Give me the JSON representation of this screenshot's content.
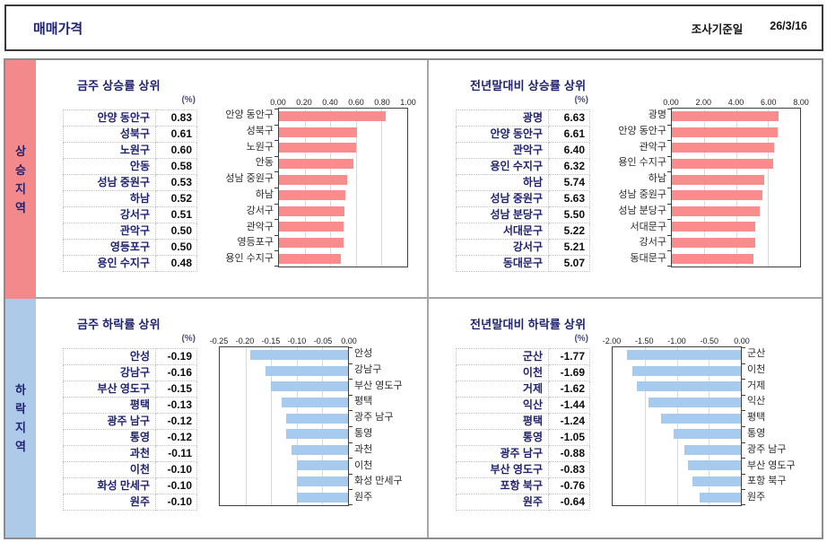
{
  "header": {
    "title": "매매가격",
    "survey_label": "조사기준일",
    "survey_date": "26/3/16"
  },
  "sidebar": {
    "rise_label": "상승지역",
    "fall_label": "하락지역"
  },
  "colors": {
    "rise_band": "#f4898b",
    "fall_band": "#adcbe9",
    "rise_bar": "#fa8c8d",
    "fall_bar": "#a7cbee",
    "navy_text": "#1e2271",
    "divider": "#a6a6a6"
  },
  "sections": [
    {
      "id": "week-rise",
      "title": "금주 상승률 상위",
      "unit": "(%)",
      "rows": [
        [
          "안양 동안구",
          "0.83"
        ],
        [
          "성북구",
          "0.61"
        ],
        [
          "노원구",
          "0.60"
        ],
        [
          "안동",
          "0.58"
        ],
        [
          "성남 중원구",
          "0.53"
        ],
        [
          "하남",
          "0.52"
        ],
        [
          "강서구",
          "0.51"
        ],
        [
          "관악구",
          "0.50"
        ],
        [
          "영등포구",
          "0.50"
        ],
        [
          "용인 수지구",
          "0.48"
        ]
      ]
    },
    {
      "id": "ytd-rise",
      "title": "전년말대비 상승률 상위",
      "unit": "(%)",
      "rows": [
        [
          "광명",
          "6.63"
        ],
        [
          "안양 동안구",
          "6.61"
        ],
        [
          "관악구",
          "6.40"
        ],
        [
          "용인 수지구",
          "6.32"
        ],
        [
          "하남",
          "5.74"
        ],
        [
          "성남 중원구",
          "5.63"
        ],
        [
          "성남 분당구",
          "5.50"
        ],
        [
          "서대문구",
          "5.22"
        ],
        [
          "강서구",
          "5.21"
        ],
        [
          "동대문구",
          "5.07"
        ]
      ]
    },
    {
      "id": "week-fall",
      "title": "금주 하락률 상위",
      "unit": "(%)",
      "rows": [
        [
          "안성",
          "-0.19"
        ],
        [
          "강남구",
          "-0.16"
        ],
        [
          "부산 영도구",
          "-0.15"
        ],
        [
          "평택",
          "-0.13"
        ],
        [
          "광주 남구",
          "-0.12"
        ],
        [
          "통영",
          "-0.12"
        ],
        [
          "과천",
          "-0.11"
        ],
        [
          "이천",
          "-0.10"
        ],
        [
          "화성 만세구",
          "-0.10"
        ],
        [
          "원주",
          "-0.10"
        ]
      ]
    },
    {
      "id": "ytd-fall",
      "title": "전년말대비 하락률 상위",
      "unit": "(%)",
      "rows": [
        [
          "군산",
          "-1.77"
        ],
        [
          "이천",
          "-1.69"
        ],
        [
          "거제",
          "-1.62"
        ],
        [
          "익산",
          "-1.44"
        ],
        [
          "평택",
          "-1.24"
        ],
        [
          "통영",
          "-1.05"
        ],
        [
          "광주 남구",
          "-0.88"
        ],
        [
          "부산 영도구",
          "-0.83"
        ],
        [
          "포항 북구",
          "-0.76"
        ],
        [
          "원주",
          "-0.64"
        ]
      ]
    }
  ],
  "chart_data": [
    {
      "type": "bar",
      "orientation": "horizontal",
      "title": "금주 상승률 상위",
      "xlabel": "",
      "ylabel": "",
      "categories": [
        "안양 동안구",
        "성북구",
        "노원구",
        "안동",
        "성남 중원구",
        "하남",
        "강서구",
        "관악구",
        "영등포구",
        "용인 수지구"
      ],
      "values": [
        0.83,
        0.61,
        0.6,
        0.58,
        0.53,
        0.52,
        0.51,
        0.5,
        0.5,
        0.48
      ],
      "xlim": [
        0,
        1.0
      ],
      "ticks": [
        "0.00",
        "0.20",
        "0.40",
        "0.60",
        "0.80",
        "1.00"
      ],
      "bar_color": "#fa8c8d",
      "label_side": "left",
      "labels_width": 80,
      "grid": true
    },
    {
      "type": "bar",
      "orientation": "horizontal",
      "title": "전년말대비 상승률 상위",
      "xlabel": "",
      "ylabel": "",
      "categories": [
        "광명",
        "안양 동안구",
        "관악구",
        "용인 수지구",
        "하남",
        "성남 중원구",
        "성남 분당구",
        "서대문구",
        "강서구",
        "동대문구"
      ],
      "values": [
        6.63,
        6.61,
        6.4,
        6.32,
        5.74,
        5.63,
        5.5,
        5.22,
        5.21,
        5.07
      ],
      "xlim": [
        0,
        8.0
      ],
      "ticks": [
        "0.00",
        "2.00",
        "4.00",
        "6.00",
        "8.00"
      ],
      "bar_color": "#fa8c8d",
      "label_side": "left",
      "labels_width": 80,
      "grid": true
    },
    {
      "type": "bar",
      "orientation": "horizontal",
      "title": "금주 하락률 상위",
      "xlabel": "",
      "ylabel": "",
      "categories": [
        "안성",
        "강남구",
        "부산 영도구",
        "평택",
        "광주 남구",
        "통영",
        "과천",
        "이천",
        "화성 만세구",
        "원주"
      ],
      "values": [
        -0.19,
        -0.16,
        -0.15,
        -0.13,
        -0.12,
        -0.12,
        -0.11,
        -0.1,
        -0.1,
        -0.1
      ],
      "xlim": [
        -0.25,
        0
      ],
      "ticks": [
        "-0.25",
        "-0.20",
        "-0.15",
        "-0.10",
        "-0.05",
        "0.00"
      ],
      "bar_color": "#a7cbee",
      "label_side": "right",
      "labels_width": 88,
      "grid": true
    },
    {
      "type": "bar",
      "orientation": "horizontal",
      "title": "전년말대비 하락률 상위",
      "xlabel": "",
      "ylabel": "",
      "categories": [
        "군산",
        "이천",
        "거제",
        "익산",
        "평택",
        "통영",
        "광주 남구",
        "부산 영도구",
        "포항 북구",
        "원주"
      ],
      "values": [
        -1.77,
        -1.69,
        -1.62,
        -1.44,
        -1.24,
        -1.05,
        -0.88,
        -0.83,
        -0.76,
        -0.64
      ],
      "xlim": [
        -2.0,
        0
      ],
      "ticks": [
        "-2.00",
        "-1.50",
        "-1.00",
        "-0.50",
        "0.00"
      ],
      "bar_color": "#a7cbee",
      "label_side": "right",
      "labels_width": 88,
      "grid": true
    }
  ]
}
